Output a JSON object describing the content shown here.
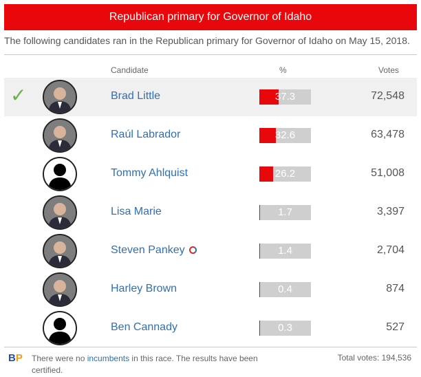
{
  "title": "Republican primary for Governor of Idaho",
  "subtitle": "The following candidates ran in the Republican primary for Governor of Idaho on May 15, 2018.",
  "headers": {
    "candidate": "Candidate",
    "percent": "%",
    "votes": "Votes"
  },
  "winner_mark": "✓",
  "colors": {
    "accent": "#e8080b",
    "link": "#2f6fb5",
    "check": "#6ab04c",
    "bar_bg": "#cfcfcf"
  },
  "candidates": [
    {
      "name": "Brad Little",
      "percent_label": "37.3",
      "percent": 37.3,
      "votes": "72,548",
      "winner": true,
      "avatar": "photo"
    },
    {
      "name": "Raúl Labrador",
      "percent_label": "32.6",
      "percent": 32.6,
      "votes": "63,478",
      "winner": false,
      "avatar": "photo"
    },
    {
      "name": "Tommy Ahlquist",
      "percent_label": "26.2",
      "percent": 26.2,
      "votes": "51,008",
      "winner": false,
      "avatar": "silhouette"
    },
    {
      "name": "Lisa Marie",
      "percent_label": "1.7",
      "percent": 1.7,
      "votes": "3,397",
      "winner": false,
      "avatar": "photo"
    },
    {
      "name": "Steven Pankey",
      "percent_label": "1.4",
      "percent": 1.4,
      "votes": "2,704",
      "winner": false,
      "avatar": "photo",
      "icon": "party-affiliation-icon"
    },
    {
      "name": "Harley Brown",
      "percent_label": "0.4",
      "percent": 0.4,
      "votes": "874",
      "winner": false,
      "avatar": "photo"
    },
    {
      "name": "Ben Cannady",
      "percent_label": "0.3",
      "percent": 0.3,
      "votes": "527",
      "winner": false,
      "avatar": "silhouette"
    }
  ],
  "footer": {
    "logo_b": "B",
    "logo_p": "P",
    "text_before": "There were no ",
    "link": "incumbents",
    "text_after": " in this race. The results have been certified.",
    "total": "Total votes: 194,536"
  }
}
